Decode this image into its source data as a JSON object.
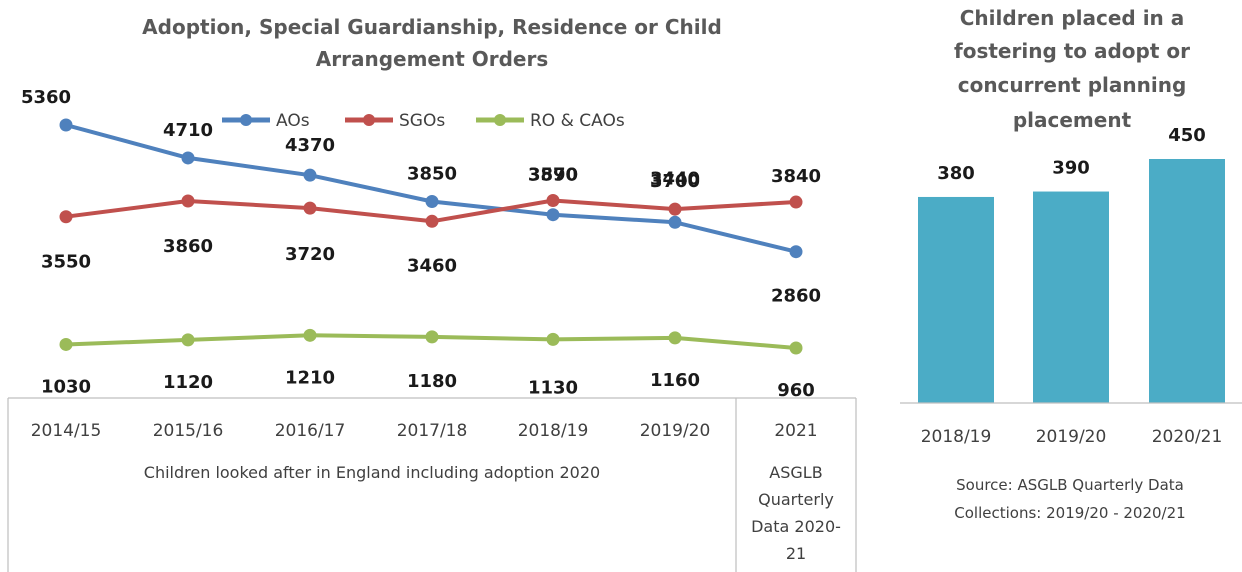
{
  "chart_data": [
    {
      "type": "line",
      "title_lines": [
        "Adoption, Special Guardianship, Residence or Child",
        "Arrangement Orders"
      ],
      "categories": [
        "2014/15",
        "2015/16",
        "2016/17",
        "2017/18",
        "2018/19",
        "2019/20",
        "2021"
      ],
      "category_groups": [
        {
          "label_lines": [
            "Children looked after in England including adoption 2020"
          ],
          "span": 6
        },
        {
          "label_lines": [
            "ASGLB",
            "Quarterly",
            "Data 2020-",
            "21"
          ],
          "span": 1
        }
      ],
      "series": [
        {
          "name": "AOs",
          "color": "#4f81bd",
          "values": [
            5360,
            4710,
            4370,
            3850,
            3590,
            3440,
            2860
          ]
        },
        {
          "name": "SGOs",
          "color": "#c0504d",
          "values": [
            3550,
            3860,
            3720,
            3460,
            3870,
            3700,
            3840
          ]
        },
        {
          "name": "RO & CAOs",
          "color": "#9bbb59",
          "values": [
            1030,
            1120,
            1210,
            1180,
            1130,
            1160,
            960
          ]
        }
      ],
      "legend": "top"
    },
    {
      "type": "bar",
      "title_lines": [
        "Children placed in a",
        "fostering to adopt or",
        "concurrent planning",
        "placement"
      ],
      "categories": [
        "2018/19",
        "2019/20",
        "2020/21"
      ],
      "values": [
        380,
        390,
        450
      ],
      "color": "#4bacc6",
      "source_lines": [
        "Source: ASGLB Quarterly Data",
        "Collections: 2019/20 - 2020/21"
      ]
    }
  ]
}
